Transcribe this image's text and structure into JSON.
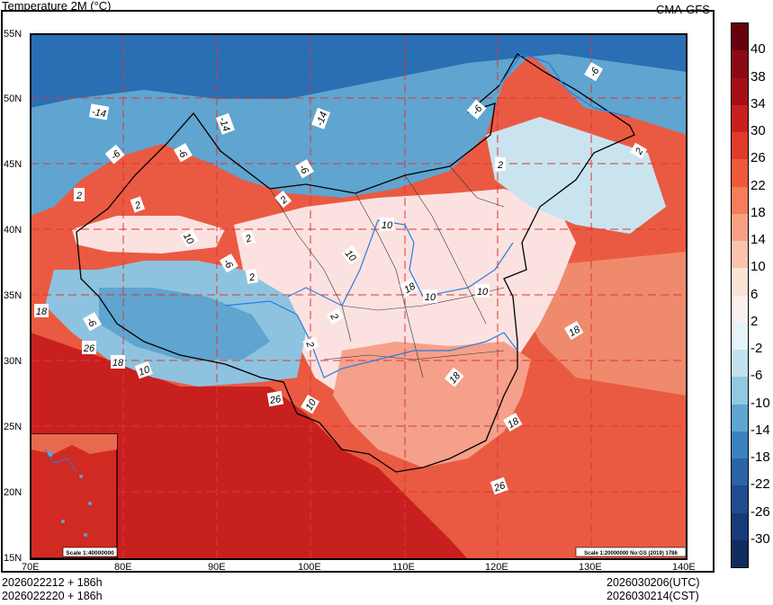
{
  "header": {
    "title": "Temperature  2M (°C)",
    "model": "CMA-GFS"
  },
  "map": {
    "lat_labels": [
      "55N",
      "50N",
      "45N",
      "40N",
      "35N",
      "30N",
      "25N",
      "20N",
      "15N"
    ],
    "lon_labels": [
      "70E",
      "80E",
      "90E",
      "100E",
      "110E",
      "120E",
      "130E",
      "140E"
    ],
    "contour_labels": [
      "-14",
      "-14",
      "-14",
      "-6",
      "-6",
      "-6",
      "-6",
      "-6",
      "2",
      "2",
      "2",
      "2",
      "2",
      "2",
      "2",
      "10",
      "10",
      "10",
      "10",
      "10",
      "10",
      "10",
      "18",
      "18",
      "18",
      "18",
      "18",
      "18",
      "26",
      "26",
      "26",
      "-6",
      "2",
      "-6",
      "2"
    ],
    "inset_scale": "Scale 1:40000000",
    "main_scale": "Scale 1:20000000 No:GS (2019) 1786",
    "colors": {
      "warm_dark": "#c8201e",
      "warm_mid": "#e8553c",
      "warm_light": "#f4a48a",
      "neutral": "#fbe6e4",
      "cool_light": "#b6dcea",
      "cool_mid": "#5fa5cf",
      "cool_dark": "#2a6fb3"
    }
  },
  "footer": {
    "init_utc": "2026022212 + 186h",
    "init_cst": "2026022220 + 186h",
    "valid_utc": "2026030206(UTC)",
    "valid_cst": "2026030214(CST)"
  },
  "colorbar": {
    "labels": [
      "40",
      "38",
      "34",
      "30",
      "26",
      "22",
      "18",
      "14",
      "10",
      "6",
      "2",
      "-2",
      "-6",
      "-10",
      "-14",
      "-18",
      "-22",
      "-26",
      "-30"
    ],
    "colors": [
      "#67000d",
      "#8b0a14",
      "#a50f15",
      "#c8201e",
      "#e03b2a",
      "#ef5a3c",
      "#f57d5a",
      "#f8a084",
      "#fbc3ad",
      "#fde2d6",
      "#fbf0f0",
      "#e6f3f8",
      "#c2e2ee",
      "#92c8e0",
      "#5fa5cf",
      "#3b82c0",
      "#2a63a8",
      "#1f4b8f",
      "#173a78",
      "#102c5e"
    ]
  }
}
